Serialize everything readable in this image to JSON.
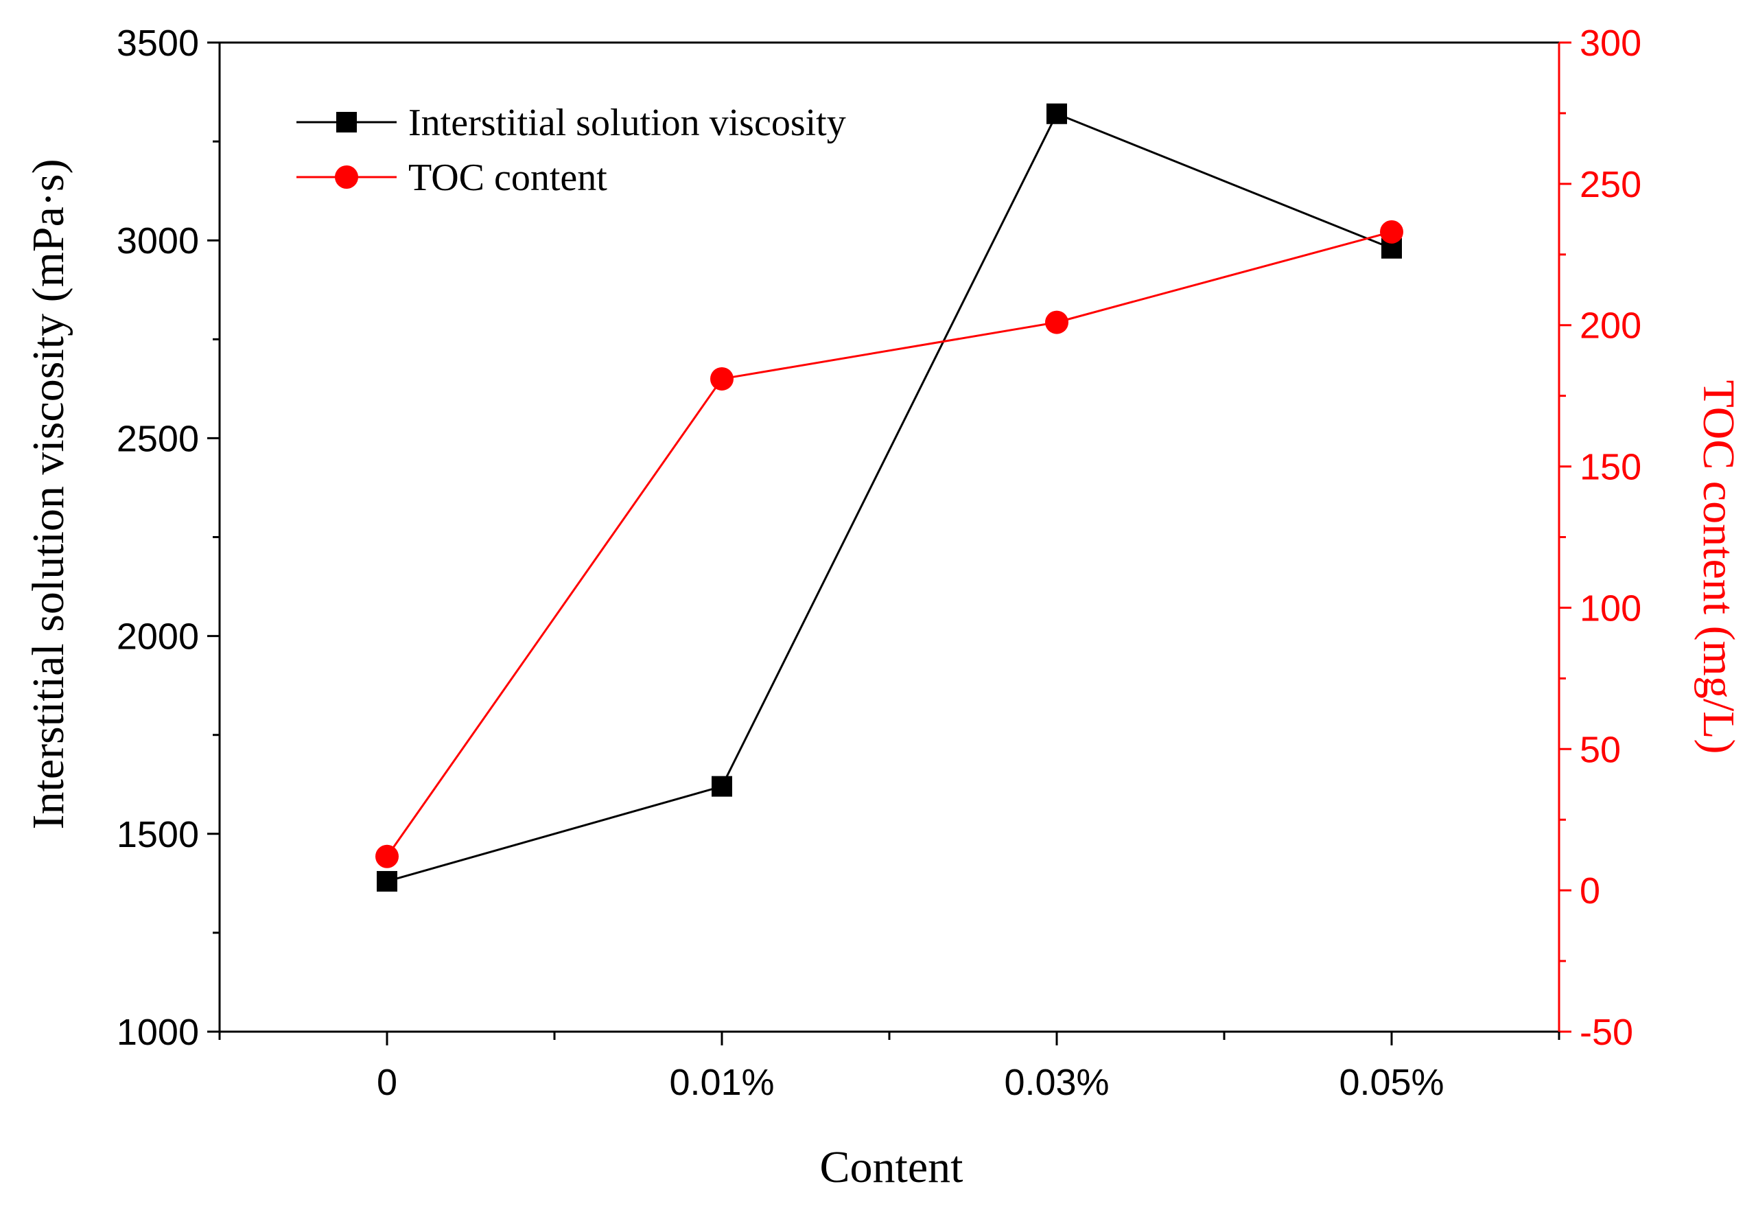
{
  "chart_data": {
    "type": "line",
    "title": "",
    "xlabel": "Content",
    "categories": [
      "0",
      "0.01%",
      "0.03%",
      "0.05%"
    ],
    "y_left": {
      "label": "Interstitial solution viscosity (mPa·s)",
      "lim": [
        1000,
        3500
      ],
      "ticks": [
        "1000",
        "1500",
        "2000",
        "2500",
        "3000",
        "3500"
      ],
      "color": "#000000"
    },
    "y_right": {
      "label": "TOC content (mg/L)",
      "lim": [
        -50,
        300
      ],
      "ticks": [
        "-50",
        "0",
        "50",
        "100",
        "150",
        "200",
        "250",
        "300"
      ],
      "color": "#ff0000"
    },
    "series": [
      {
        "name": "Interstitial solution viscosity",
        "axis": "left",
        "marker": "square",
        "color": "#000000",
        "values": [
          1380,
          1620,
          3320,
          2980
        ]
      },
      {
        "name": "TOC content",
        "axis": "right",
        "marker": "circle",
        "color": "#ff0000",
        "values": [
          12,
          181,
          201,
          233
        ]
      }
    ],
    "legend": {
      "placement": "top-left"
    },
    "grid": false
  }
}
